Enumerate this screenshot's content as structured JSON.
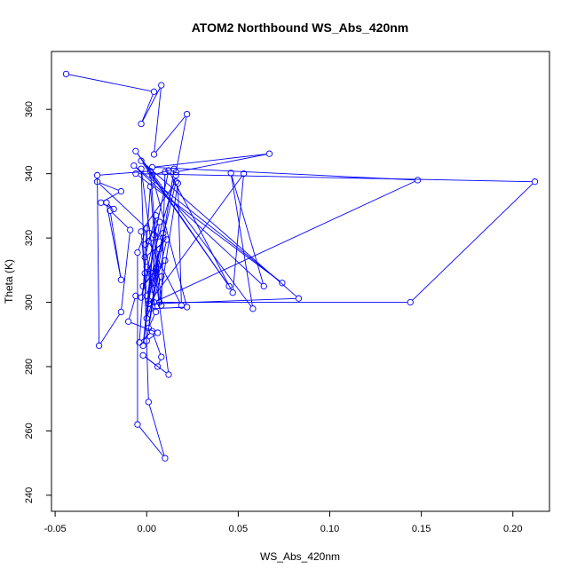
{
  "chart_data": {
    "type": "line",
    "title": "ATOM2 Northbound WS_Abs_420nm",
    "xlabel": "WS_Abs_420nm",
    "ylabel": "Theta (K)",
    "xlim": [
      -0.052,
      0.22
    ],
    "ylim": [
      235,
      378
    ],
    "x_ticks": [
      -0.05,
      0.0,
      0.05,
      0.1,
      0.15,
      0.2
    ],
    "x_tick_labels": [
      "-0.05",
      "0.00",
      "0.05",
      "0.10",
      "0.15",
      "0.20"
    ],
    "y_ticks": [
      240,
      260,
      280,
      300,
      320,
      340,
      360
    ],
    "y_tick_labels": [
      "240",
      "260",
      "280",
      "300",
      "320",
      "340",
      "360"
    ],
    "grid": false,
    "legend": "none",
    "color": "#0000ff",
    "marker": "open-circle",
    "series": [
      {
        "points": [
          [
            -0.044,
            371.0
          ],
          [
            0.004,
            365.5
          ],
          [
            -0.003,
            355.5
          ],
          [
            0.008,
            367.5
          ],
          [
            0.004,
            346.0
          ],
          [
            0.022,
            358.5
          ],
          [
            0.016,
            340.5
          ],
          [
            0.067,
            346.2
          ],
          [
            0.003,
            342.0
          ],
          [
            0.148,
            338.0
          ],
          [
            0.004,
            300.0
          ],
          [
            0.144,
            300.0
          ],
          [
            0.212,
            337.5
          ],
          [
            -0.006,
            340.0
          ],
          [
            0.074,
            306.0
          ],
          [
            -0.007,
            342.5
          ],
          [
            0.064,
            305.0
          ],
          [
            0.046,
            340.2
          ],
          [
            0.058,
            298.0
          ],
          [
            -0.006,
            347.0
          ],
          [
            0.045,
            305.0
          ],
          [
            -0.003,
            344.0
          ],
          [
            0.083,
            301.2
          ],
          [
            0.001,
            299.5
          ],
          [
            0.053,
            340.0
          ],
          [
            0.047,
            303.0
          ],
          [
            0.012,
            341.0
          ],
          [
            -0.003,
            301.5
          ],
          [
            0.016,
            339.5
          ],
          [
            0.01,
            340.5
          ],
          [
            0.008,
            299.0
          ],
          [
            0.002,
            340.8
          ],
          [
            -0.027,
            339.5
          ],
          [
            -0.026,
            286.5
          ],
          [
            -0.014,
            297.0
          ],
          [
            -0.009,
            322.5
          ],
          [
            -0.02,
            328.5
          ],
          [
            -0.014,
            307.0
          ],
          [
            -0.022,
            331.0
          ],
          [
            -0.018,
            329.0
          ],
          [
            -0.025,
            331.0
          ],
          [
            -0.014,
            334.5
          ],
          [
            -0.027,
            337.5
          ],
          [
            0.0,
            323.0
          ],
          [
            -0.005,
            315.5
          ],
          [
            -0.005,
            262.0
          ],
          [
            0.01,
            251.5
          ],
          [
            0.001,
            269.0
          ],
          [
            -0.003,
            341.5
          ],
          [
            0.012,
            277.5
          ],
          [
            -0.002,
            283.5
          ],
          [
            0.006,
            280.0
          ],
          [
            0.008,
            283.0
          ],
          [
            0.003,
            291.0
          ],
          [
            -0.004,
            287.5
          ],
          [
            0.002,
            336.0
          ],
          [
            0.007,
            300.0
          ],
          [
            0.017,
            337.0
          ],
          [
            0.019,
            299.0
          ],
          [
            0.001,
            319.0
          ],
          [
            0.009,
            320.0
          ],
          [
            0.0,
            323.0
          ],
          [
            -0.001,
            309.0
          ],
          [
            0.005,
            310.5
          ],
          [
            -0.002,
            305.0
          ],
          [
            0.01,
            313.0
          ],
          [
            0.003,
            306.0
          ],
          [
            0.016,
            337.5
          ],
          [
            -0.003,
            322.0
          ],
          [
            0.0,
            302.0
          ],
          [
            0.007,
            316.5
          ],
          [
            0.001,
            292.0
          ],
          [
            0.005,
            297.0
          ],
          [
            -0.001,
            318.0
          ],
          [
            0.007,
            325.0
          ],
          [
            -0.002,
            286.5
          ],
          [
            0.004,
            321.0
          ],
          [
            0.001,
            300.5
          ],
          [
            0.009,
            321.5
          ],
          [
            0.003,
            304.0
          ],
          [
            0.0,
            311.0
          ],
          [
            0.008,
            308.0
          ],
          [
            0.0,
            295.0
          ],
          [
            0.005,
            327.0
          ],
          [
            -0.001,
            314.0
          ],
          [
            0.011,
            319.5
          ],
          [
            0.002,
            298.0
          ],
          [
            0.022,
            298.5
          ],
          [
            0.003,
            339.5
          ],
          [
            0.015,
            341.5
          ],
          [
            0.0,
            288.0
          ],
          [
            0.006,
            290.5
          ],
          [
            -0.01,
            294.0
          ],
          [
            -0.006,
            302.0
          ]
        ]
      }
    ]
  }
}
